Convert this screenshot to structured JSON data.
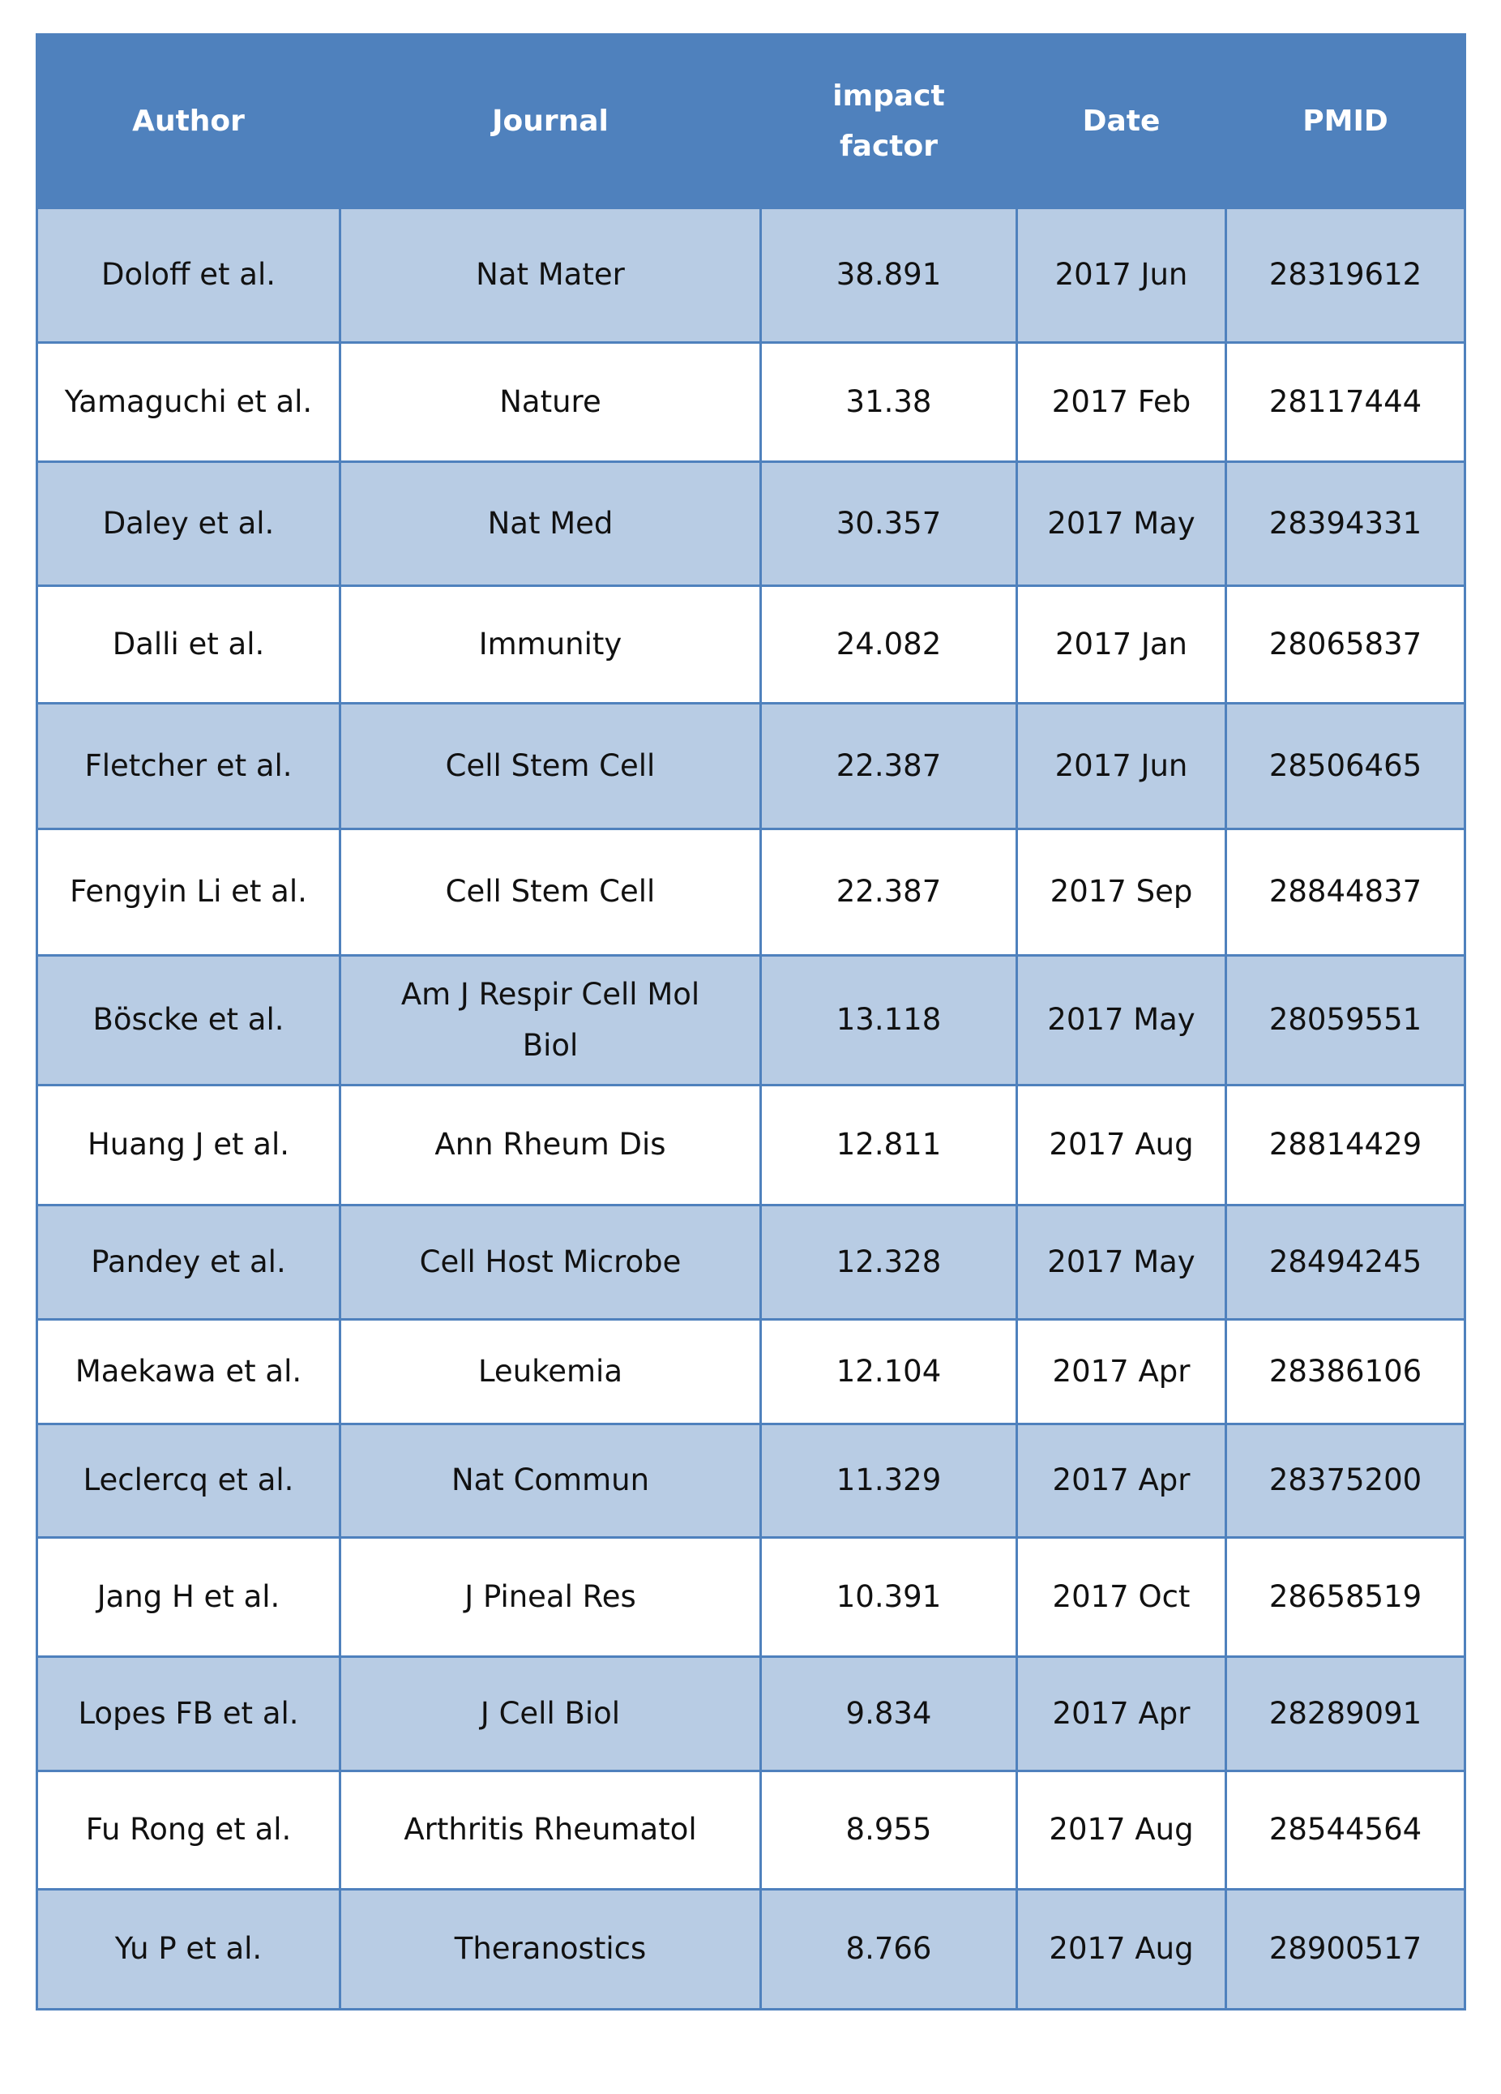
{
  "table": {
    "headers": [
      "Author",
      "Journal",
      "impact factor",
      "Date",
      "PMID"
    ],
    "rows": [
      [
        "Doloff et al.",
        "Nat Mater",
        "38.891",
        "2017 Jun",
        "28319612"
      ],
      [
        "Yamaguchi et al.",
        "Nature",
        "31.38",
        "2017 Feb",
        "28117444"
      ],
      [
        "Daley et al.",
        "Nat Med",
        "30.357",
        "2017 May",
        "28394331"
      ],
      [
        "Dalli et al.",
        "Immunity",
        "24.082",
        "2017 Jan",
        "28065837"
      ],
      [
        "Fletcher et al.",
        "Cell Stem Cell",
        "22.387",
        "2017 Jun",
        "28506465"
      ],
      [
        "Fengyin Li et al.",
        "Cell Stem Cell",
        "22.387",
        "2017 Sep",
        "28844837"
      ],
      [
        "Böscke et al.",
        "Am J Respir Cell Mol Biol",
        "13.118",
        "2017 May",
        "28059551"
      ],
      [
        "Huang J et al.",
        "Ann Rheum Dis",
        "12.811",
        "2017 Aug",
        "28814429"
      ],
      [
        "Pandey et al.",
        "Cell Host Microbe",
        "12.328",
        "2017 May",
        "28494245"
      ],
      [
        "Maekawa et al.",
        "Leukemia",
        "12.104",
        "2017 Apr",
        "28386106"
      ],
      [
        "Leclercq et al.",
        "Nat Commun",
        "11.329",
        "2017 Apr",
        "28375200"
      ],
      [
        "Jang H et al.",
        "J Pineal Res",
        "10.391",
        "2017 Oct",
        "28658519"
      ],
      [
        "Lopes FB et al.",
        "J Cell Biol",
        "9.834",
        "2017 Apr",
        "28289091"
      ],
      [
        "Fu Rong et al.",
        "Arthritis Rheumatol",
        "8.955",
        "2017 Aug",
        "28544564"
      ],
      [
        "Yu P et al.",
        "Theranostics",
        "8.766",
        "2017 Aug",
        "28900517"
      ]
    ]
  },
  "colors": {
    "header": "#4f81bd",
    "band": "#b8cce4",
    "border": "#4f81bd"
  }
}
